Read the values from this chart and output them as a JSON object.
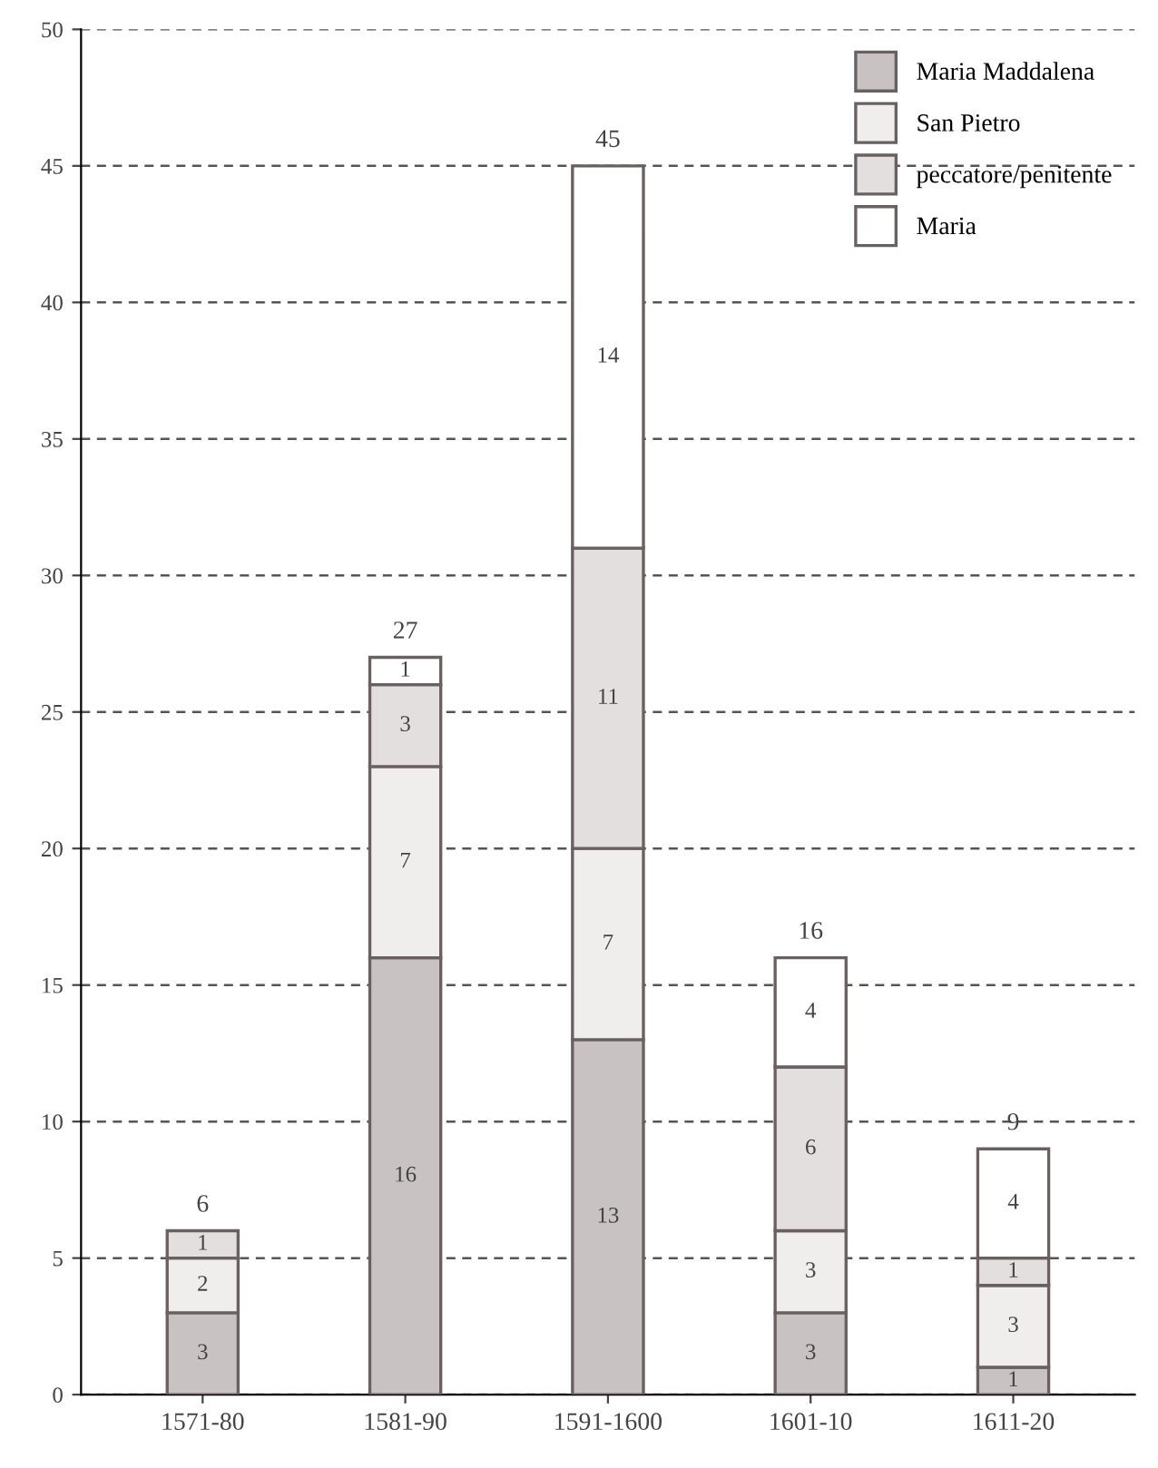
{
  "chart_data": {
    "type": "bar",
    "stacked": true,
    "categories": [
      "1571-80",
      "1581-90",
      "1591-1600",
      "1601-10",
      "1611-20"
    ],
    "series": [
      {
        "name": "Maria Maddalena",
        "color": "#c8c2c2",
        "values": [
          3,
          16,
          13,
          3,
          1
        ],
        "value_labels": [
          "3",
          "16",
          "13",
          "3",
          "1"
        ]
      },
      {
        "name": "San Pietro",
        "color": "#f0eded",
        "values": [
          2,
          7,
          7,
          3,
          3
        ],
        "value_labels": [
          "2",
          "7",
          "7",
          "3",
          "3"
        ]
      },
      {
        "name": "peccatore/penitente",
        "color": "#e4dfdf",
        "values": [
          1,
          3,
          11,
          6,
          1
        ],
        "value_labels": [
          "1",
          "3",
          "11",
          "6",
          "1"
        ]
      },
      {
        "name": "Maria",
        "color": "#ffffff",
        "values": [
          null,
          1,
          14,
          4,
          4
        ],
        "value_labels": [
          null,
          "1",
          "14",
          "4",
          "4"
        ]
      }
    ],
    "totals": [
      "6",
      "27",
      "45",
      "16",
      "9"
    ],
    "ylim": [
      0,
      50
    ],
    "yticks": [
      0,
      5,
      10,
      15,
      20,
      25,
      30,
      35,
      40,
      45,
      50
    ],
    "grid": "y",
    "legend": "top right"
  }
}
